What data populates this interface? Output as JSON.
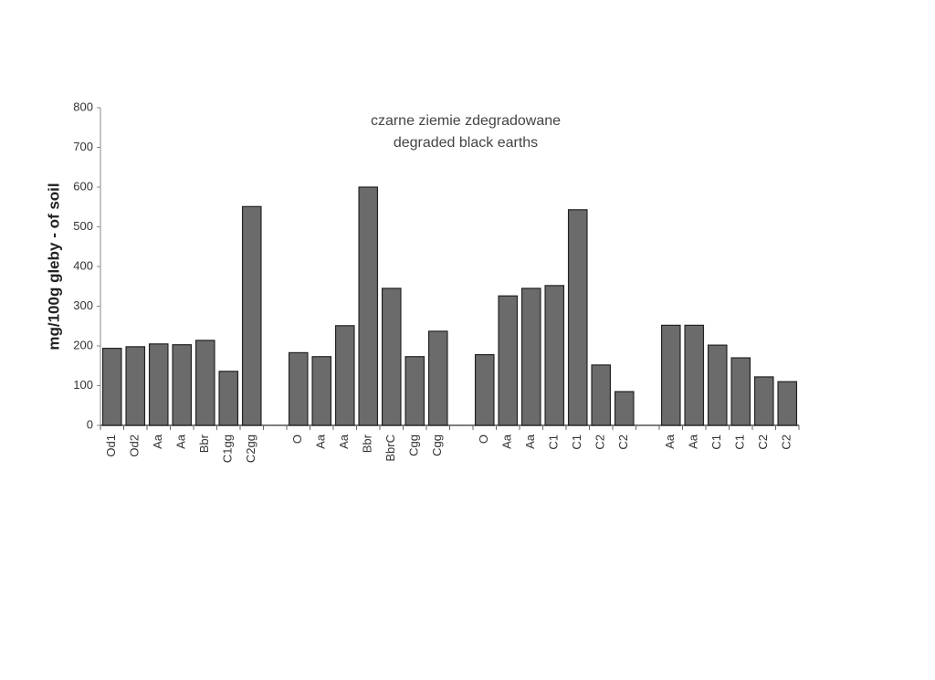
{
  "chart_data": {
    "type": "bar",
    "title": "czarne ziemie zdegradowane",
    "subtitle": "degraded black earths",
    "y_label": "mg/100g gleby - of soil",
    "categories": [
      "Od1",
      "Od2",
      "Aa",
      "Aa",
      "Bbr",
      "C1gg",
      "C2gg",
      null,
      "O",
      "Aa",
      "Aa",
      "Bbr",
      "BbrC",
      "Cgg",
      "Cgg",
      null,
      "O",
      "Aa",
      "Aa",
      "C1",
      "C1",
      "C2",
      "C2",
      null,
      "Aa",
      "Aa",
      "C1",
      "C1",
      "C2",
      "C2"
    ],
    "values": [
      194,
      198,
      205,
      203,
      214,
      136,
      551,
      null,
      183,
      173,
      251,
      600,
      345,
      173,
      237,
      null,
      178,
      326,
      345,
      352,
      543,
      152,
      85,
      null,
      252,
      252,
      202,
      170,
      122,
      110
    ],
    "color": "#6b6b6b",
    "ylim": [
      0,
      800
    ],
    "yticks": [
      0,
      100,
      200,
      300,
      400,
      500,
      600,
      700,
      800
    ]
  }
}
